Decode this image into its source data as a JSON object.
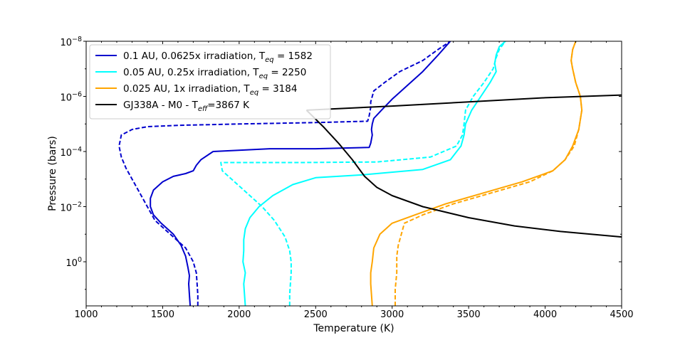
{
  "chart_data": {
    "type": "line",
    "xlabel": "Temperature (K)",
    "ylabel": "Pressure (bars)",
    "xlim": [
      1000,
      4500
    ],
    "ylim_log10": [
      1.6,
      -8
    ],
    "y_scale": "log",
    "x_ticks": [
      1000,
      1500,
      2000,
      2500,
      3000,
      3500,
      4000,
      4500
    ],
    "x_tick_labels": [
      "1000",
      "1500",
      "2000",
      "2500",
      "3000",
      "3500",
      "4000",
      "4500"
    ],
    "y_ticks_log10": [
      -8,
      -6,
      -4,
      -2,
      0
    ],
    "y_tick_labels": [
      {
        "base": "10",
        "exp": "−8"
      },
      {
        "base": "10",
        "exp": "−6"
      },
      {
        "base": "10",
        "exp": "−4"
      },
      {
        "base": "10",
        "exp": "−2"
      },
      {
        "base": "10",
        "exp": "0"
      }
    ],
    "legend_position": "upper-left",
    "legend": [
      {
        "text": "0.1 AU, 0.0625x irradiation, T",
        "sub": "eq",
        "tail": " = 1582",
        "color": "#0000cd"
      },
      {
        "text": "0.05 AU, 0.25x irradiation, T",
        "sub": "eq",
        "tail": " = 2250",
        "color": "#00ffff"
      },
      {
        "text": "0.025 AU, 1x irradiation, T",
        "sub": "eq",
        "tail": " = 3184",
        "color": "#ffa500"
      },
      {
        "text": "GJ338A - M0 - T",
        "sub": "eff",
        "tail": "=3867 K",
        "color": "#000000"
      }
    ],
    "series": [
      {
        "name": "0.1 AU solid",
        "color": "#0000cd",
        "dashed": false,
        "T": [
          1680,
          1675,
          1670,
          1675,
          1665,
          1650,
          1620,
          1570,
          1490,
          1440,
          1420,
          1420,
          1440,
          1500,
          1570,
          1650,
          1700,
          1720,
          1750,
          1830,
          2200,
          2500,
          2850,
          2860,
          2870,
          2865,
          2870,
          2880,
          2930,
          3000,
          3080,
          3200,
          3300,
          3380
        ],
        "logP": [
          1.6,
          1.2,
          0.8,
          0.5,
          0.2,
          -0.2,
          -0.6,
          -1.0,
          -1.4,
          -1.7,
          -2.0,
          -2.3,
          -2.6,
          -2.9,
          -3.1,
          -3.2,
          -3.3,
          -3.5,
          -3.7,
          -4.0,
          -4.1,
          -4.1,
          -4.15,
          -4.3,
          -4.6,
          -4.8,
          -5.0,
          -5.2,
          -5.5,
          -5.9,
          -6.3,
          -6.9,
          -7.5,
          -8.0
        ]
      },
      {
        "name": "0.1 AU dashed",
        "color": "#0000cd",
        "dashed": true,
        "T": [
          1730,
          1730,
          1725,
          1720,
          1700,
          1650,
          1550,
          1450,
          1400,
          1350,
          1300,
          1260,
          1230,
          1215,
          1230,
          1300,
          1400,
          1600,
          2000,
          2500,
          2840,
          2850,
          2860,
          2860,
          2870,
          2880,
          2950,
          3050,
          3200,
          3300,
          3380
        ],
        "logP": [
          1.6,
          1.2,
          0.8,
          0.4,
          0.0,
          -0.5,
          -1.0,
          -1.5,
          -2.0,
          -2.5,
          -3.0,
          -3.4,
          -3.8,
          -4.2,
          -4.6,
          -4.8,
          -4.9,
          -4.95,
          -5.0,
          -5.05,
          -5.1,
          -5.3,
          -5.6,
          -5.8,
          -6.0,
          -6.2,
          -6.5,
          -6.9,
          -7.3,
          -7.7,
          -8.0
        ]
      },
      {
        "name": "0.05 AU solid",
        "color": "#00ffff",
        "dashed": false,
        "T": [
          2040,
          2035,
          2030,
          2040,
          2025,
          2030,
          2030,
          2040,
          2070,
          2130,
          2220,
          2350,
          2500,
          2800,
          3200,
          3380,
          3450,
          3470,
          3480,
          3520,
          3580,
          3640,
          3680,
          3670,
          3680,
          3700,
          3740
        ],
        "logP": [
          1.6,
          1.2,
          0.8,
          0.4,
          0.0,
          -0.4,
          -0.8,
          -1.2,
          -1.6,
          -2.0,
          -2.4,
          -2.8,
          -3.05,
          -3.15,
          -3.35,
          -3.7,
          -4.2,
          -4.6,
          -5.0,
          -5.5,
          -6.0,
          -6.5,
          -6.9,
          -7.2,
          -7.5,
          -7.8,
          -8.0
        ]
      },
      {
        "name": "0.05 AU dashed",
        "color": "#00ffff",
        "dashed": true,
        "T": [
          2330,
          2330,
          2335,
          2340,
          2340,
          2330,
          2300,
          2230,
          2150,
          2050,
          1950,
          1890,
          1880,
          2000,
          2400,
          2900,
          3250,
          3420,
          3460,
          3470,
          3480,
          3530,
          3600,
          3660,
          3680,
          3700,
          3740
        ],
        "logP": [
          1.6,
          1.2,
          0.8,
          0.4,
          0.0,
          -0.4,
          -0.9,
          -1.5,
          -2.0,
          -2.5,
          -3.0,
          -3.3,
          -3.6,
          -3.6,
          -3.6,
          -3.62,
          -3.8,
          -4.2,
          -4.6,
          -5.0,
          -5.5,
          -6.0,
          -6.5,
          -7.0,
          -7.4,
          -7.7,
          -8.0
        ]
      },
      {
        "name": "0.025 AU solid",
        "color": "#ffa500",
        "dashed": false,
        "T": [
          2870,
          2865,
          2860,
          2860,
          2870,
          2880,
          2920,
          3000,
          3150,
          3350,
          3600,
          3850,
          4050,
          4130,
          4180,
          4220,
          4240,
          4230,
          4200,
          4180,
          4170,
          4180,
          4200
        ],
        "logP": [
          1.6,
          1.2,
          0.8,
          0.4,
          0.0,
          -0.5,
          -1.0,
          -1.4,
          -1.7,
          -2.1,
          -2.5,
          -2.9,
          -3.3,
          -3.7,
          -4.2,
          -4.8,
          -5.5,
          -6.0,
          -6.5,
          -7.0,
          -7.3,
          -7.7,
          -8.0
        ]
      },
      {
        "name": "0.025 AU dashed",
        "color": "#ffa500",
        "dashed": true,
        "T": [
          3020,
          3020,
          3030,
          3030,
          3040,
          3060,
          3080,
          3200,
          3400,
          3650,
          3900,
          4050,
          4130,
          4190,
          4220,
          4240,
          4230,
          4200,
          4180,
          4170,
          4180,
          4200
        ],
        "logP": [
          1.6,
          1.0,
          0.4,
          -0.2,
          -0.6,
          -1.0,
          -1.4,
          -1.7,
          -2.1,
          -2.5,
          -2.9,
          -3.3,
          -3.7,
          -4.2,
          -4.8,
          -5.5,
          -6.0,
          -6.5,
          -7.0,
          -7.3,
          -7.7,
          -8.0
        ]
      },
      {
        "name": "GJ338A - M0",
        "color": "#000000",
        "dashed": false,
        "T": [
          2440,
          2550,
          2650,
          2740,
          2820,
          2900,
          3000,
          3200,
          3500,
          3800,
          4100,
          4300,
          4500
        ],
        "logP": [
          -5.5,
          -4.9,
          -4.3,
          -3.7,
          -3.1,
          -2.7,
          -2.4,
          -2.0,
          -1.6,
          -1.3,
          -1.1,
          -1.0,
          -0.9
        ]
      },
      {
        "name": "GJ338A - M0 (upper)",
        "color": "#000000",
        "dashed": false,
        "T": [
          2440,
          3000,
          3500,
          4000,
          4500
        ],
        "logP": [
          -5.5,
          -5.65,
          -5.8,
          -5.95,
          -6.05
        ]
      }
    ]
  }
}
